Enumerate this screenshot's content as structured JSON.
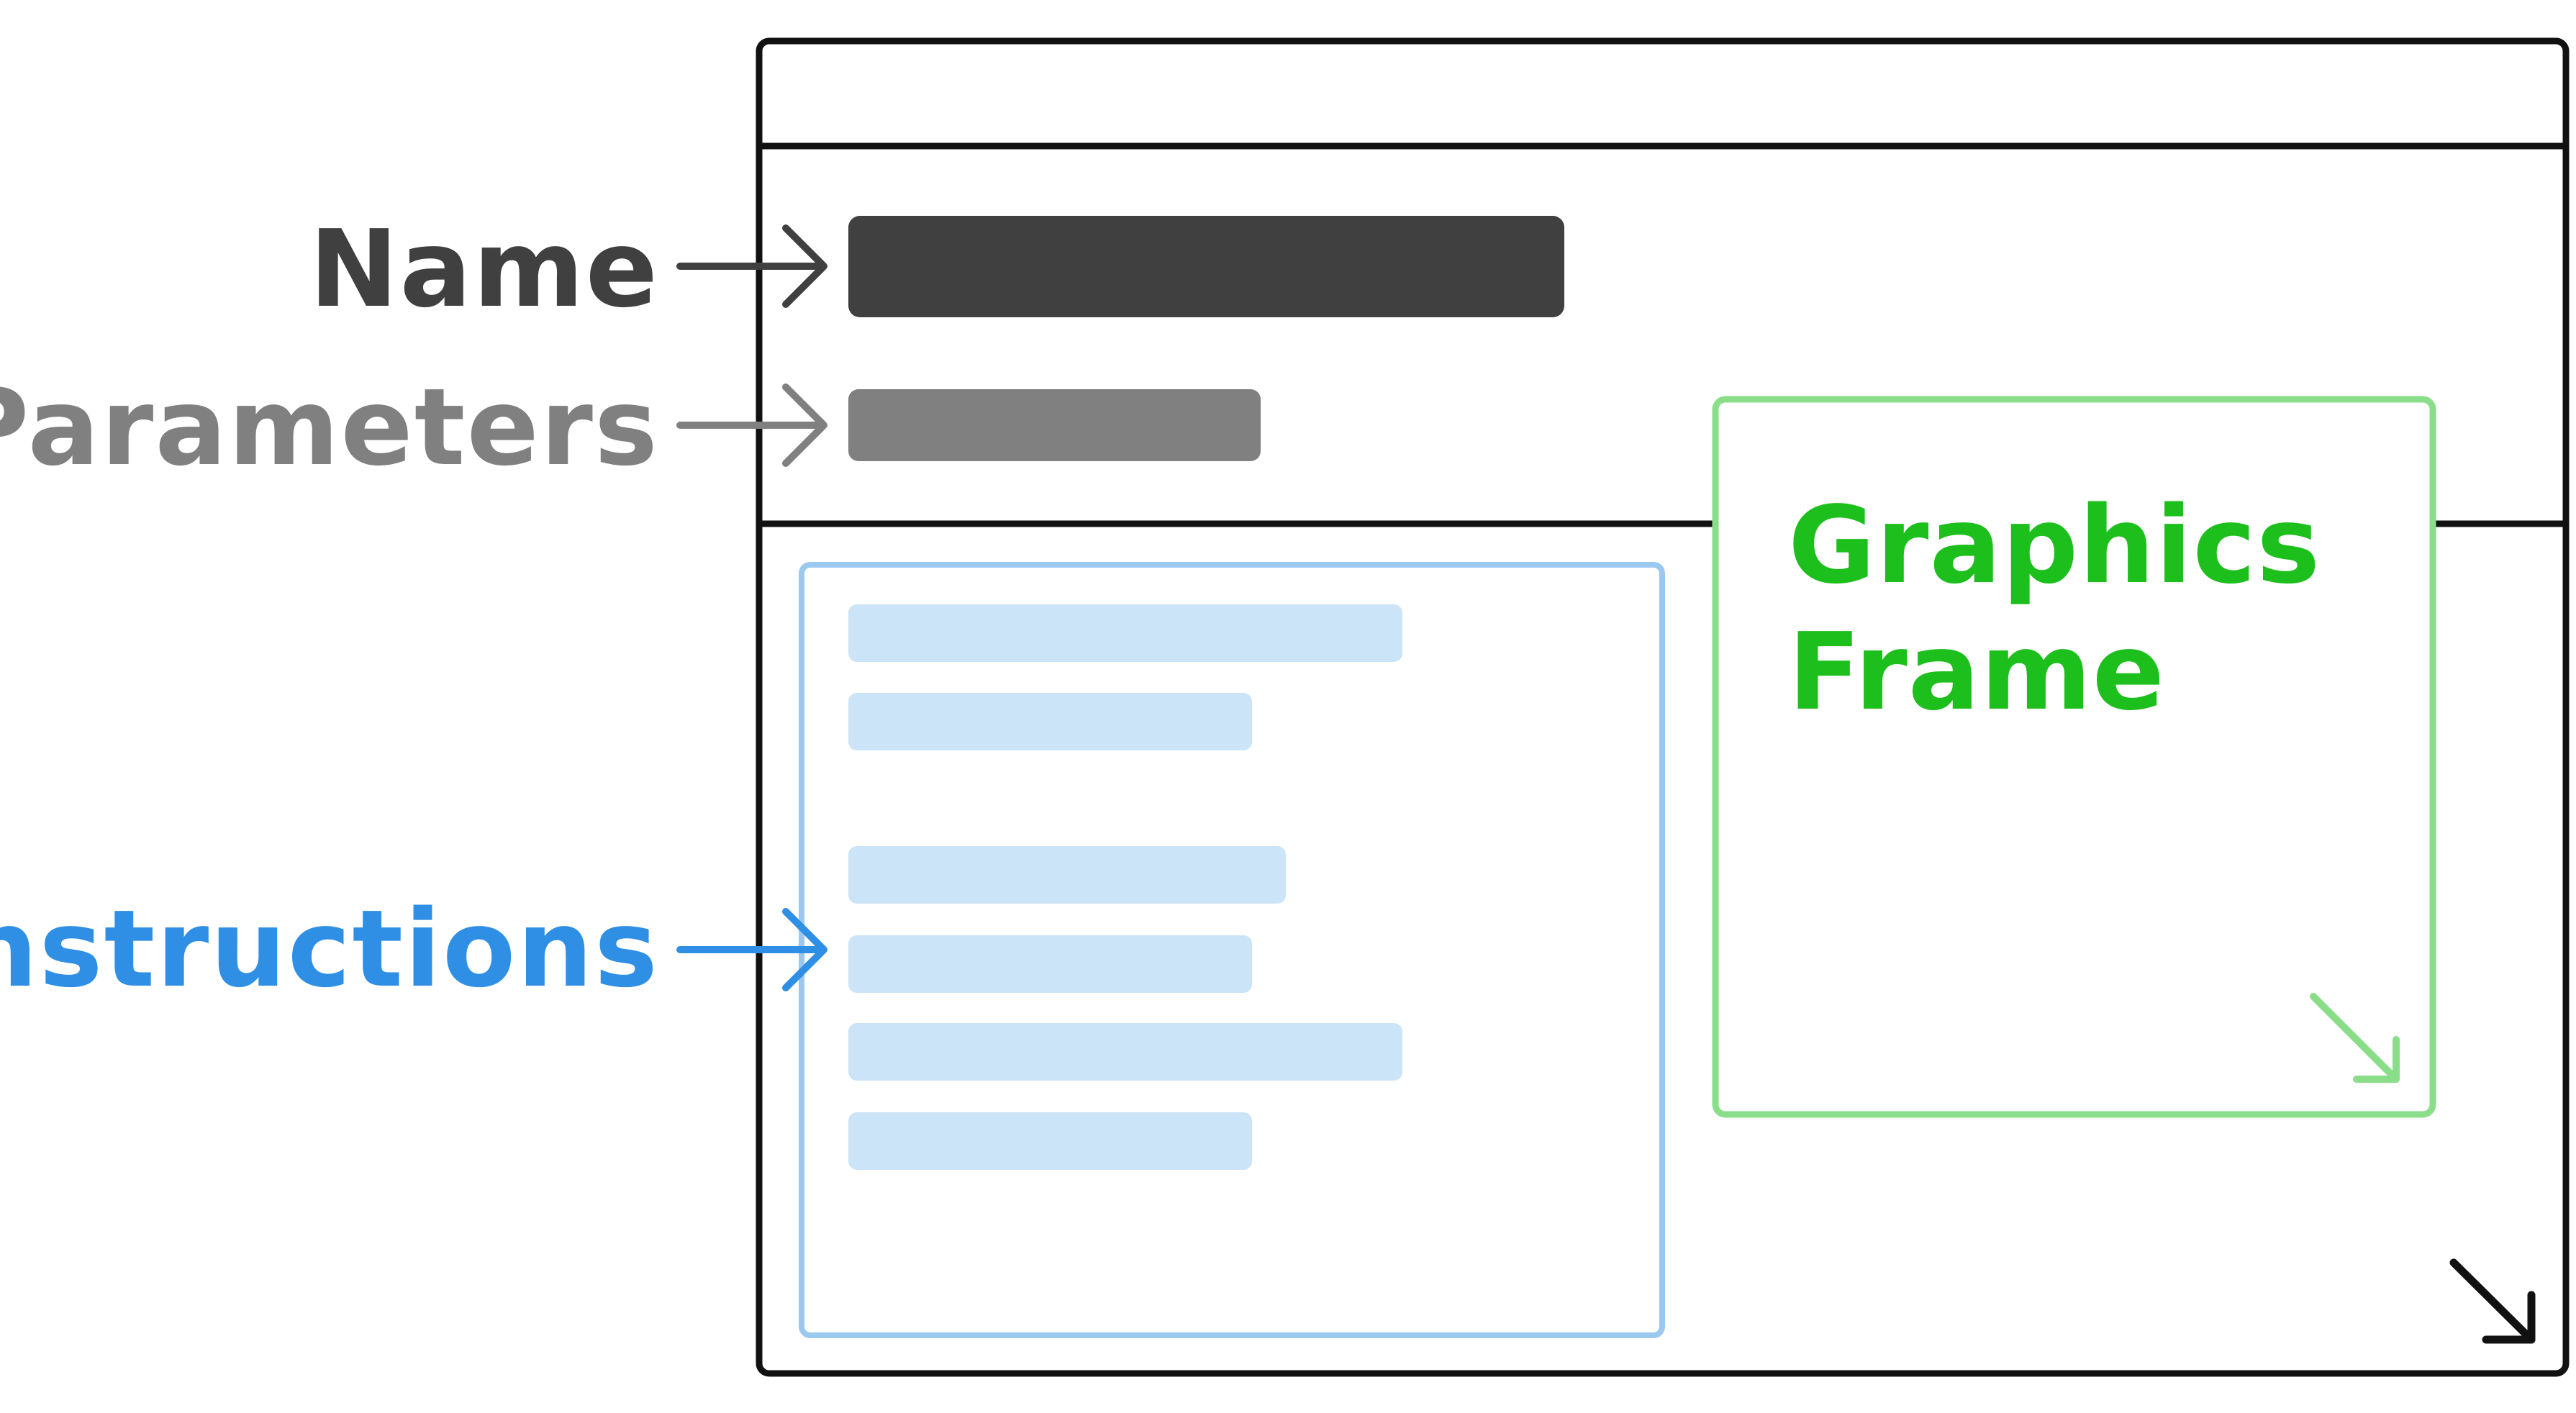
{
  "callouts": {
    "name": "Name",
    "parameters": "Parameters",
    "instructions": "Instructions"
  },
  "graphics_frame": {
    "line1": "Graphics",
    "line2": "Frame"
  },
  "colors": {
    "name": "#404040",
    "parameters": "#808080",
    "instructions": "#2f8fe5",
    "instructions_fill": "#cce4f7",
    "instructions_border": "#9bc8ee",
    "graphics_frame_text": "#1cbf1c",
    "graphics_frame_border": "#8ade8a",
    "window_border": "#111111"
  },
  "icons": {
    "window_resize": "resize-arrow-icon",
    "frame_resize": "resize-arrow-icon"
  }
}
